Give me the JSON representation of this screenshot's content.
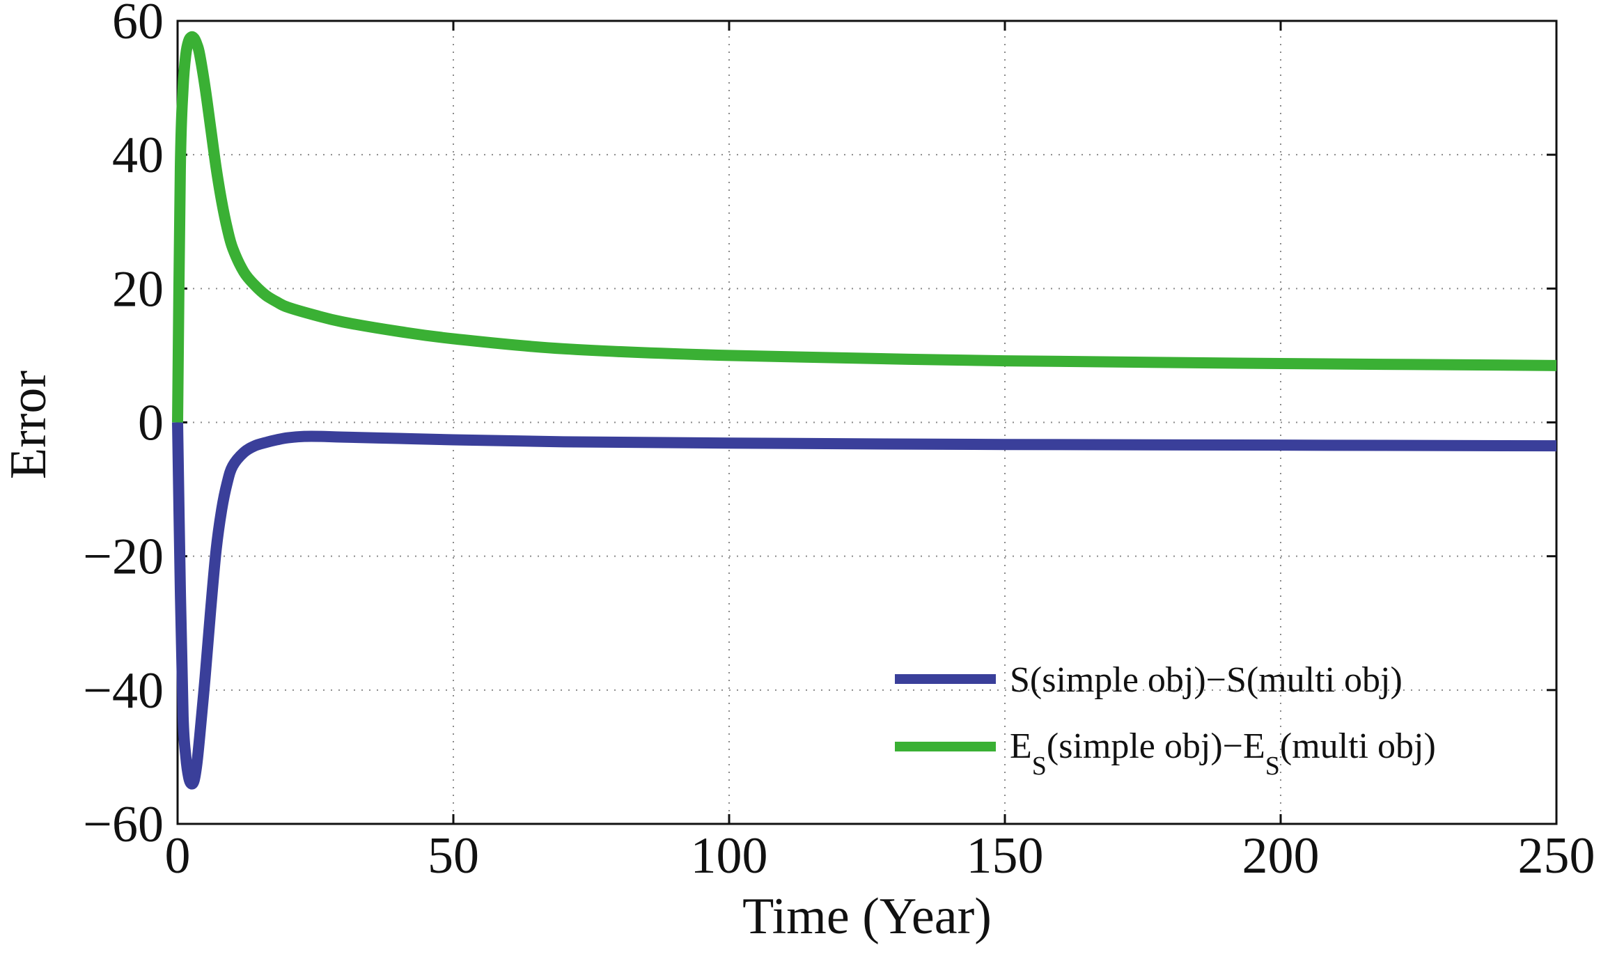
{
  "chart_data": {
    "type": "line",
    "title": "",
    "xlabel": "Time (Year)",
    "ylabel": "Error",
    "xlim": [
      0,
      250
    ],
    "ylim": [
      -60,
      60
    ],
    "xticks": [
      0,
      50,
      100,
      150,
      200,
      250
    ],
    "yticks": [
      -60,
      -40,
      -20,
      0,
      20,
      40,
      60
    ],
    "xtick_labels": [
      "0",
      "50",
      "100",
      "150",
      "200",
      "250"
    ],
    "ytick_labels": [
      "−60",
      "−40",
      "−20",
      "0",
      "20",
      "40",
      "60"
    ],
    "grid": true,
    "legend_position": "bottom-right",
    "series": [
      {
        "name": "S(simple obj)−S(multi obj)",
        "legend": {
          "base1": "S",
          "rest1": "(simple obj)−",
          "base2": "S",
          "rest2": "(multi obj)"
        },
        "color": "#3a3f9a",
        "x": [
          0,
          0.5,
          1,
          1.5,
          2,
          2.5,
          3,
          3.5,
          4,
          5,
          6,
          7,
          8,
          9,
          10,
          12,
          14,
          16,
          18,
          20,
          23,
          26,
          30,
          40,
          50,
          70,
          100,
          150,
          200,
          250
        ],
        "y": [
          0,
          -25,
          -44,
          -50,
          -53,
          -54,
          -53.5,
          -51,
          -47,
          -38,
          -28,
          -19,
          -13,
          -9,
          -6.5,
          -4.5,
          -3.5,
          -3,
          -2.6,
          -2.3,
          -2.1,
          -2.1,
          -2.2,
          -2.4,
          -2.6,
          -2.9,
          -3.1,
          -3.3,
          -3.4,
          -3.5
        ]
      },
      {
        "name": "E_S(simple obj)−E_S(multi obj)",
        "legend": {
          "base1": "E",
          "sub1": "S",
          "rest1": "(simple obj)−",
          "base2": "E",
          "sub2": "S",
          "rest2": "(multi obj)"
        },
        "color": "#3ab034",
        "x": [
          0,
          0.5,
          1,
          1.5,
          2,
          2.5,
          3,
          3.5,
          4,
          5,
          6,
          7,
          8,
          9,
          10,
          12,
          14,
          16,
          18,
          20,
          25,
          30,
          40,
          50,
          70,
          100,
          150,
          200,
          250
        ],
        "y": [
          0,
          38,
          50,
          55,
          57,
          57.6,
          57.4,
          56.5,
          55,
          50,
          44,
          38,
          33,
          29,
          26,
          22.5,
          20.5,
          19,
          18,
          17.2,
          16,
          15,
          13.6,
          12.5,
          11,
          10,
          9.2,
          8.8,
          8.5
        ]
      }
    ]
  }
}
